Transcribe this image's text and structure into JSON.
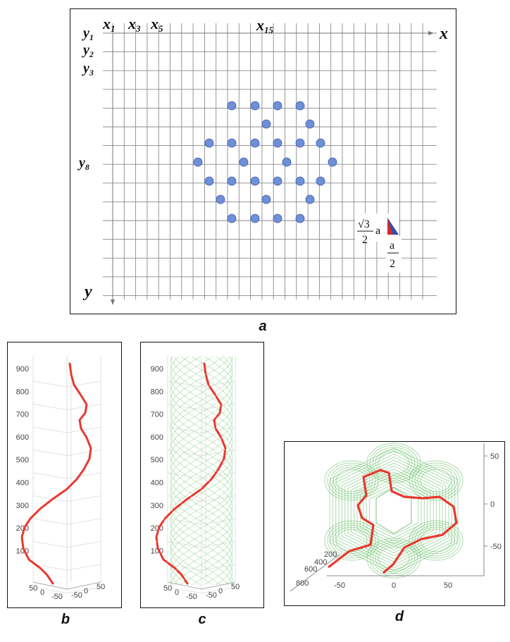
{
  "panel_a": {
    "caption": "a",
    "x_labels": [
      "x",
      "1",
      "x",
      "3",
      "x",
      "5",
      "x",
      "15"
    ],
    "y_labels": [
      "y",
      "1",
      "y",
      "2",
      "y",
      "3",
      "y",
      "8"
    ],
    "axis_x": "x",
    "axis_y": "y",
    "formula_num": "√3",
    "formula_den": "2",
    "formula_a": "a",
    "formula_half_num": "a",
    "formula_half_den": "2",
    "dot_color": "#6f8fd6",
    "dot_stroke": "#3c5aa8"
  },
  "panel_b": {
    "caption": "b",
    "z_ticks": [
      "900",
      "800",
      "700",
      "600",
      "500",
      "400",
      "300",
      "200",
      "100"
    ],
    "base_ticks": [
      "50",
      "0",
      "-50",
      "-50",
      "0",
      "50"
    ],
    "curve_color": "#e8392f"
  },
  "panel_c": {
    "caption": "c",
    "z_ticks": [
      "900",
      "800",
      "700",
      "600",
      "500",
      "400",
      "300",
      "200",
      "100"
    ],
    "base_ticks": [
      "50",
      "0",
      "-50",
      "-50",
      "0",
      "50"
    ],
    "mesh_color": "#5cb85c",
    "curve_color": "#e8392f"
  },
  "panel_d": {
    "caption": "d",
    "right_ticks": [
      "50",
      "0",
      "-50"
    ],
    "bottom_ticks": [
      "-50",
      "0",
      "50"
    ],
    "depth_ticks": [
      "200",
      "400",
      "600",
      "800"
    ],
    "mesh_color": "#5cb85c",
    "curve_color": "#e8392f"
  }
}
